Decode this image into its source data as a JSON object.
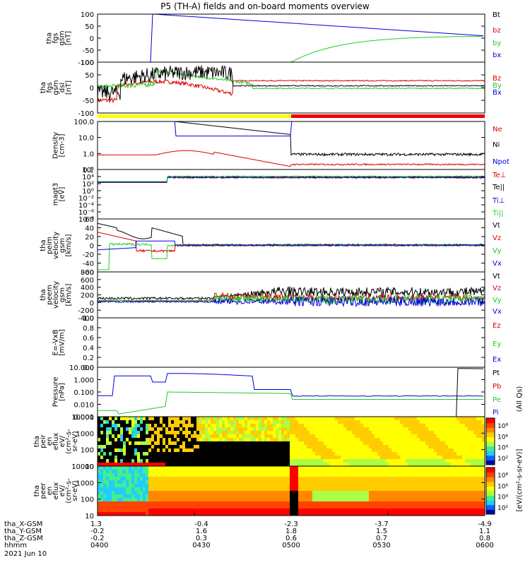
{
  "title": "P5 (TH-A) fields and on-board moments overview",
  "colors": {
    "black": "#000000",
    "red": "#dd0000",
    "green": "#22cc22",
    "blue": "#0000dd",
    "yellow": "#ffff00",
    "barred": "#ee0000"
  },
  "chart_data": [
    {
      "id": "fgs",
      "type": "line",
      "ylabel": [
        "tha",
        "fgs",
        "gsm",
        "[nT]"
      ],
      "ylim": [
        -100,
        100
      ],
      "yticks": [
        "100",
        "50",
        "0",
        "-50",
        "-100"
      ],
      "legend": [
        {
          "name": "Bt",
          "color": "black"
        },
        {
          "name": "bz",
          "color": "red"
        },
        {
          "name": "by",
          "color": "green"
        },
        {
          "name": "bx",
          "color": "blue"
        }
      ]
    },
    {
      "id": "fgs_dsl",
      "type": "line",
      "ylabel": [
        "tha",
        "fgs",
        "gsm",
        "dsl",
        "[nT]"
      ],
      "ylim": [
        -100,
        100
      ],
      "yticks": [
        "100",
        "50",
        "0",
        "-50",
        "-100"
      ],
      "legend": [
        {
          "name": "Bz",
          "color": "red"
        },
        {
          "name": "By",
          "color": "green"
        },
        {
          "name": "Bx",
          "color": "blue"
        }
      ]
    },
    {
      "id": "mode_bar",
      "type": "bar",
      "segments": [
        {
          "from": 0.0,
          "to": 0.5,
          "color": "yellow"
        },
        {
          "from": 0.5,
          "to": 1.0,
          "color": "barred"
        }
      ]
    },
    {
      "id": "density",
      "type": "line",
      "ylabel": [
        "Density",
        "[cm-3]"
      ],
      "scale": "log",
      "yticks": [
        "100.0",
        "10.0",
        "1.0",
        "0.1"
      ],
      "legend": [
        {
          "name": "Ne",
          "color": "red"
        },
        {
          "name": "Ni",
          "color": "black"
        },
        {
          "name": "Npot",
          "color": "blue"
        }
      ]
    },
    {
      "id": "temp",
      "type": "line",
      "ylabel": [
        "magt3",
        "[eV]"
      ],
      "scale": "log",
      "yticks": [
        "10⁶",
        "10⁴",
        "10²",
        "10⁰",
        "10⁻²",
        "10⁻⁴",
        "10⁻⁶",
        "10⁻⁸"
      ],
      "legend": [
        {
          "name": "Te⊥",
          "color": "red"
        },
        {
          "name": "Te||",
          "color": "black"
        },
        {
          "name": "Ti⊥",
          "color": "blue"
        },
        {
          "name": "Ti||",
          "color": "green"
        }
      ]
    },
    {
      "id": "ivel",
      "type": "line",
      "ylabel": [
        "tha",
        "peim",
        "velocity",
        "gsm",
        "[km/s]"
      ],
      "ylim": [
        -60,
        60
      ],
      "yticks": [
        "60",
        "40",
        "20",
        "0",
        "-20",
        "-40",
        "-60"
      ],
      "legend": [
        {
          "name": "Vt",
          "color": "black"
        },
        {
          "name": "Vz",
          "color": "red"
        },
        {
          "name": "Vy",
          "color": "green"
        },
        {
          "name": "Vx",
          "color": "blue"
        }
      ]
    },
    {
      "id": "evel",
      "type": "line",
      "ylabel": [
        "tha",
        "peem",
        "velocity",
        "gsm",
        "[km/s]"
      ],
      "ylim": [
        -400,
        800
      ],
      "yticks": [
        "800",
        "600",
        "400",
        "200",
        "0",
        "-200",
        "-400"
      ],
      "legend": [
        {
          "name": "Vt",
          "color": "black"
        },
        {
          "name": "Vz",
          "color": "red"
        },
        {
          "name": "Vy",
          "color": "green"
        },
        {
          "name": "Vx",
          "color": "blue"
        }
      ]
    },
    {
      "id": "efield",
      "type": "line",
      "ylabel": [
        "E=-VxB",
        "[mV/m]"
      ],
      "ylim": [
        0,
        1
      ],
      "yticks": [
        "1.0",
        "0.8",
        "0.6",
        "0.4",
        "0.2",
        "0.0"
      ],
      "legend": [
        {
          "name": "Ez",
          "color": "red"
        },
        {
          "name": "Ey",
          "color": "green"
        },
        {
          "name": "Ex",
          "color": "blue"
        }
      ]
    },
    {
      "id": "pressure",
      "type": "line",
      "ylabel": [
        "Pressure",
        "[nPa]"
      ],
      "scale": "log",
      "yticks": [
        "10.000",
        "1.000",
        "0.100",
        "0.010",
        "0.001"
      ],
      "legend": [
        {
          "name": "Pt",
          "color": "black"
        },
        {
          "name": "Pb",
          "color": "red"
        },
        {
          "name": "Pe",
          "color": "green"
        },
        {
          "name": "Pi",
          "color": "blue"
        }
      ]
    },
    {
      "id": "ion_spec",
      "type": "heatmap",
      "ylabel": [
        "tha",
        "peir",
        "en",
        "eflux",
        "eV/",
        "(cm²-s-",
        "sr-eV)"
      ],
      "yticks": [
        "10000",
        "1000",
        "100",
        "10"
      ]
    },
    {
      "id": "elec_spec",
      "type": "heatmap",
      "ylabel": [
        "tha",
        "peer",
        "en",
        "eflux",
        "eV/",
        "(cm²-s-",
        "sr-eV)"
      ],
      "yticks": [
        "10000",
        "1000",
        "100",
        "10"
      ]
    }
  ],
  "colorbars": {
    "ion": [
      "10⁸",
      "10⁶",
      "10⁴",
      "10²"
    ],
    "electron": [
      "10⁸",
      "10⁶",
      "10⁴",
      "10²"
    ],
    "label": "[eV/(cm²-s-sr-eV)]",
    "label2": "(All Qs)"
  },
  "x_axis": {
    "rows": [
      {
        "name": "tha_X-GSM",
        "values": [
          "1.3",
          "-0.4",
          "-2.3",
          "-3.7",
          "-4.9"
        ]
      },
      {
        "name": "tha_Y-GSM",
        "values": [
          "-0.2",
          "1.6",
          "1.8",
          "1.5",
          "1.1"
        ]
      },
      {
        "name": "tha_Z-GSM",
        "values": [
          "-0.2",
          "0.3",
          "0.6",
          "0.7",
          "0.8"
        ]
      },
      {
        "name": "hhmm",
        "values": [
          "0400",
          "0430",
          "0500",
          "0530",
          "0600"
        ]
      }
    ],
    "date": "2021 Jun 10"
  }
}
